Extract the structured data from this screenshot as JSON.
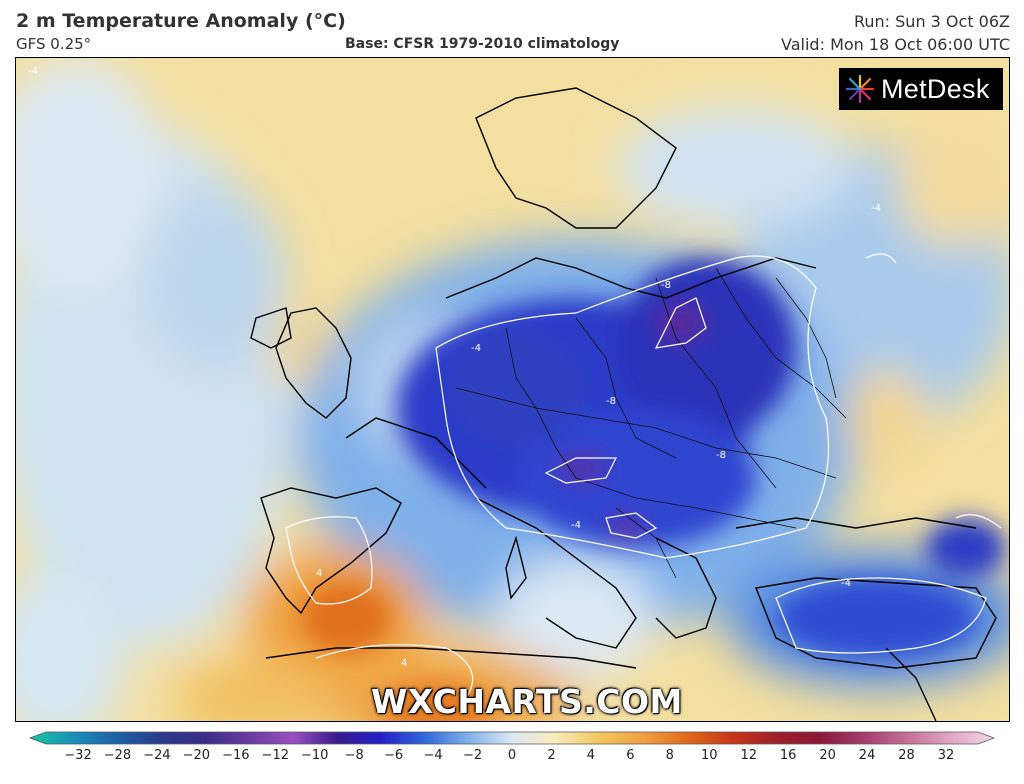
{
  "header": {
    "title": "2 m Temperature Anomaly (°C)",
    "model": "GFS 0.25°",
    "base": "Base: CFSR 1979-2010 climatology",
    "run": "Run: Sun 3 Oct 06Z",
    "valid": "Valid: Mon 18 Oct 06:00 UTC"
  },
  "logo": {
    "text": "MetDesk",
    "icon": "starburst-icon"
  },
  "watermark": "WXCHARTS.COM",
  "contour_labels": [
    "-4",
    "-8",
    "-4",
    "-8",
    "-4",
    "4",
    "-4",
    "-8",
    "4",
    "-4"
  ],
  "legend": {
    "ticks": [
      "−32",
      "−28",
      "−24",
      "−20",
      "−16",
      "−12",
      "−10",
      "−8",
      "−6",
      "−4",
      "−2",
      "0",
      "2",
      "4",
      "6",
      "8",
      "10",
      "12",
      "16",
      "20",
      "24",
      "28",
      "32"
    ],
    "colors": [
      "#17c9a0",
      "#1a8fb8",
      "#1c5fa8",
      "#2a3a8a",
      "#3b2b88",
      "#6a3aa0",
      "#9a50c0",
      "#3a1a8e",
      "#2420c8",
      "#2f66dc",
      "#7fb0ea",
      "#dce9f4",
      "#f8ecb8",
      "#f2c860",
      "#f0a040",
      "#e06a1a",
      "#c8361a",
      "#a02028",
      "#8a1838",
      "#a33a6a",
      "#c46f96",
      "#e0a6c4",
      "#f5d6e8"
    ]
  }
}
